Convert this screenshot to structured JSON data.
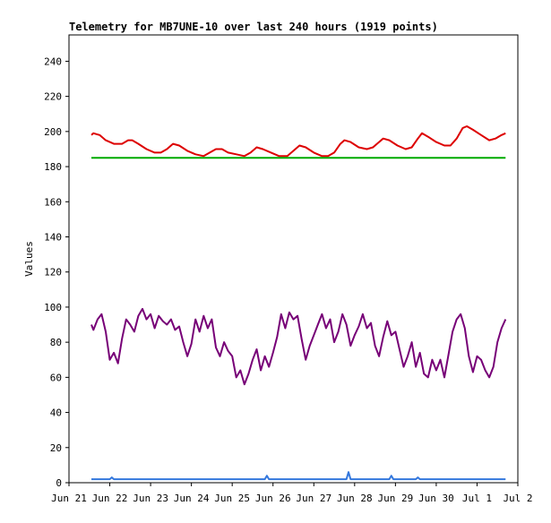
{
  "chart_data": {
    "type": "line",
    "title": "Telemetry for MB7UNE-10 over last 240 hours (1919 points)",
    "xlabel": "",
    "ylabel": "Values",
    "ylim": [
      0,
      255
    ],
    "y_ticks": [
      0,
      20,
      40,
      60,
      80,
      100,
      120,
      140,
      160,
      180,
      200,
      220,
      240
    ],
    "x_tick_labels": [
      "Jun 21",
      "Jun 22",
      "Jun 23",
      "Jun 24",
      "Jun 25",
      "Jun 26",
      "Jun 27",
      "Jun 28",
      "Jun 29",
      "Jun 30",
      "Jul 1",
      "Jul 2"
    ],
    "x_range_days": [
      0,
      11
    ],
    "grid": false,
    "legend": "none",
    "series": [
      {
        "color": "#dd0000",
        "points": [
          [
            0.55,
            198
          ],
          [
            0.6,
            199
          ],
          [
            0.75,
            198
          ],
          [
            0.9,
            195
          ],
          [
            1.1,
            193
          ],
          [
            1.3,
            193
          ],
          [
            1.45,
            195
          ],
          [
            1.55,
            195
          ],
          [
            1.7,
            193
          ],
          [
            1.9,
            190
          ],
          [
            2.1,
            188
          ],
          [
            2.25,
            188
          ],
          [
            2.4,
            190
          ],
          [
            2.55,
            193
          ],
          [
            2.7,
            192
          ],
          [
            2.9,
            189
          ],
          [
            3.1,
            187
          ],
          [
            3.3,
            186
          ],
          [
            3.45,
            188
          ],
          [
            3.6,
            190
          ],
          [
            3.75,
            190
          ],
          [
            3.9,
            188
          ],
          [
            4.1,
            187
          ],
          [
            4.3,
            186
          ],
          [
            4.45,
            188
          ],
          [
            4.6,
            191
          ],
          [
            4.75,
            190
          ],
          [
            4.95,
            188
          ],
          [
            5.15,
            186
          ],
          [
            5.35,
            186
          ],
          [
            5.5,
            189
          ],
          [
            5.65,
            192
          ],
          [
            5.8,
            191
          ],
          [
            6.0,
            188
          ],
          [
            6.2,
            186
          ],
          [
            6.35,
            186
          ],
          [
            6.5,
            188
          ],
          [
            6.65,
            193
          ],
          [
            6.75,
            195
          ],
          [
            6.9,
            194
          ],
          [
            7.1,
            191
          ],
          [
            7.3,
            190
          ],
          [
            7.45,
            191
          ],
          [
            7.6,
            194
          ],
          [
            7.7,
            196
          ],
          [
            7.85,
            195
          ],
          [
            8.05,
            192
          ],
          [
            8.25,
            190
          ],
          [
            8.4,
            191
          ],
          [
            8.55,
            196
          ],
          [
            8.65,
            199
          ],
          [
            8.8,
            197
          ],
          [
            9.0,
            194
          ],
          [
            9.2,
            192
          ],
          [
            9.35,
            192
          ],
          [
            9.5,
            196
          ],
          [
            9.65,
            202
          ],
          [
            9.75,
            203
          ],
          [
            9.9,
            201
          ],
          [
            10.1,
            198
          ],
          [
            10.3,
            195
          ],
          [
            10.45,
            196
          ],
          [
            10.6,
            198
          ],
          [
            10.7,
            199
          ]
        ]
      },
      {
        "color": "#00aa00",
        "points": [
          [
            0.55,
            185
          ],
          [
            10.7,
            185
          ]
        ]
      },
      {
        "color": "#770077",
        "points": [
          [
            0.55,
            90
          ],
          [
            0.6,
            87
          ],
          [
            0.7,
            93
          ],
          [
            0.8,
            96
          ],
          [
            0.9,
            86
          ],
          [
            1.0,
            70
          ],
          [
            1.1,
            74
          ],
          [
            1.2,
            68
          ],
          [
            1.3,
            82
          ],
          [
            1.4,
            93
          ],
          [
            1.5,
            90
          ],
          [
            1.6,
            86
          ],
          [
            1.7,
            95
          ],
          [
            1.8,
            99
          ],
          [
            1.9,
            93
          ],
          [
            2.0,
            96
          ],
          [
            2.1,
            88
          ],
          [
            2.2,
            95
          ],
          [
            2.3,
            92
          ],
          [
            2.4,
            90
          ],
          [
            2.5,
            93
          ],
          [
            2.6,
            87
          ],
          [
            2.7,
            89
          ],
          [
            2.8,
            80
          ],
          [
            2.9,
            72
          ],
          [
            3.0,
            79
          ],
          [
            3.1,
            93
          ],
          [
            3.2,
            86
          ],
          [
            3.3,
            95
          ],
          [
            3.4,
            88
          ],
          [
            3.5,
            93
          ],
          [
            3.6,
            77
          ],
          [
            3.7,
            72
          ],
          [
            3.8,
            80
          ],
          [
            3.9,
            75
          ],
          [
            4.0,
            72
          ],
          [
            4.1,
            60
          ],
          [
            4.2,
            64
          ],
          [
            4.3,
            56
          ],
          [
            4.4,
            62
          ],
          [
            4.5,
            70
          ],
          [
            4.6,
            76
          ],
          [
            4.7,
            64
          ],
          [
            4.8,
            72
          ],
          [
            4.9,
            66
          ],
          [
            5.0,
            74
          ],
          [
            5.1,
            83
          ],
          [
            5.2,
            96
          ],
          [
            5.3,
            88
          ],
          [
            5.4,
            97
          ],
          [
            5.5,
            93
          ],
          [
            5.6,
            95
          ],
          [
            5.7,
            82
          ],
          [
            5.8,
            70
          ],
          [
            5.9,
            78
          ],
          [
            6.0,
            84
          ],
          [
            6.1,
            90
          ],
          [
            6.2,
            96
          ],
          [
            6.3,
            88
          ],
          [
            6.4,
            93
          ],
          [
            6.5,
            80
          ],
          [
            6.6,
            86
          ],
          [
            6.7,
            96
          ],
          [
            6.8,
            90
          ],
          [
            6.9,
            78
          ],
          [
            7.0,
            84
          ],
          [
            7.1,
            89
          ],
          [
            7.2,
            96
          ],
          [
            7.3,
            88
          ],
          [
            7.4,
            91
          ],
          [
            7.5,
            78
          ],
          [
            7.6,
            72
          ],
          [
            7.7,
            83
          ],
          [
            7.8,
            92
          ],
          [
            7.9,
            84
          ],
          [
            8.0,
            86
          ],
          [
            8.1,
            76
          ],
          [
            8.2,
            66
          ],
          [
            8.3,
            72
          ],
          [
            8.4,
            80
          ],
          [
            8.5,
            66
          ],
          [
            8.6,
            74
          ],
          [
            8.7,
            62
          ],
          [
            8.8,
            60
          ],
          [
            8.9,
            70
          ],
          [
            9.0,
            64
          ],
          [
            9.1,
            70
          ],
          [
            9.2,
            60
          ],
          [
            9.3,
            73
          ],
          [
            9.4,
            86
          ],
          [
            9.5,
            93
          ],
          [
            9.6,
            96
          ],
          [
            9.7,
            88
          ],
          [
            9.8,
            72
          ],
          [
            9.9,
            63
          ],
          [
            10.0,
            72
          ],
          [
            10.1,
            70
          ],
          [
            10.2,
            64
          ],
          [
            10.3,
            60
          ],
          [
            10.4,
            66
          ],
          [
            10.5,
            80
          ],
          [
            10.6,
            88
          ],
          [
            10.7,
            93
          ]
        ]
      },
      {
        "color": "#3377dd",
        "points": [
          [
            0.55,
            2
          ],
          [
            1.0,
            2
          ],
          [
            1.05,
            3
          ],
          [
            1.1,
            2
          ],
          [
            3.0,
            2
          ],
          [
            4.0,
            2
          ],
          [
            4.8,
            2
          ],
          [
            4.85,
            4
          ],
          [
            4.9,
            2
          ],
          [
            6.0,
            2
          ],
          [
            6.8,
            2
          ],
          [
            6.85,
            6
          ],
          [
            6.9,
            2
          ],
          [
            7.0,
            2
          ],
          [
            7.85,
            2
          ],
          [
            7.9,
            4
          ],
          [
            7.95,
            2
          ],
          [
            8.5,
            2
          ],
          [
            8.55,
            3
          ],
          [
            8.6,
            2
          ],
          [
            9.5,
            2
          ],
          [
            10.0,
            2
          ],
          [
            10.7,
            2
          ]
        ]
      }
    ]
  }
}
